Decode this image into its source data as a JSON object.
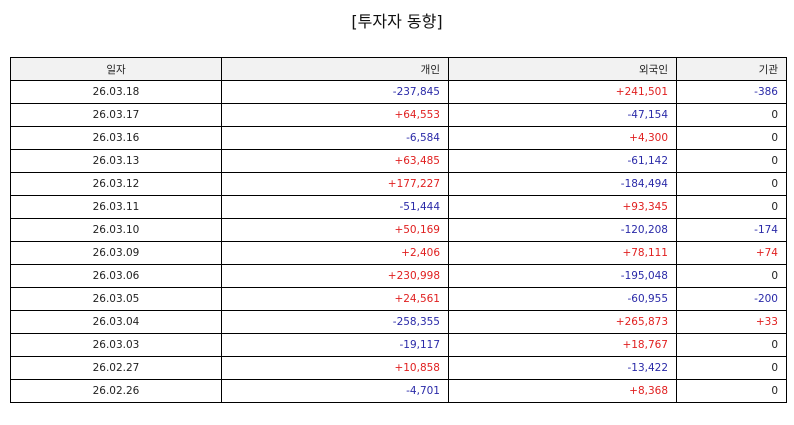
{
  "title": "[투자자 동향]",
  "table": {
    "headers": [
      "일자",
      "개인",
      "외국인",
      "기관"
    ],
    "rows": [
      [
        "26.03.18",
        "-237,845",
        "+241,501",
        "-386"
      ],
      [
        "26.03.17",
        "+64,553",
        "-47,154",
        "0"
      ],
      [
        "26.03.16",
        "-6,584",
        "+4,300",
        "0"
      ],
      [
        "26.03.13",
        "+63,485",
        "-61,142",
        "0"
      ],
      [
        "26.03.12",
        "+177,227",
        "-184,494",
        "0"
      ],
      [
        "26.03.11",
        "-51,444",
        "+93,345",
        "0"
      ],
      [
        "26.03.10",
        "+50,169",
        "-120,208",
        "-174"
      ],
      [
        "26.03.09",
        "+2,406",
        "+78,111",
        "+74"
      ],
      [
        "26.03.06",
        "+230,998",
        "-195,048",
        "0"
      ],
      [
        "26.03.05",
        "+24,561",
        "-60,955",
        "-200"
      ],
      [
        "26.03.04",
        "-258,355",
        "+265,873",
        "+33"
      ],
      [
        "26.03.03",
        "-19,117",
        "+18,767",
        "0"
      ],
      [
        "26.02.27",
        "+10,858",
        "-13,422",
        "0"
      ],
      [
        "26.02.26",
        "-4,701",
        "+8,368",
        "0"
      ]
    ]
  },
  "colors": {
    "positive": "#e02020",
    "negative": "#2a2aa8",
    "neutral": "#222222",
    "header_bg": "#f2f2f2"
  }
}
